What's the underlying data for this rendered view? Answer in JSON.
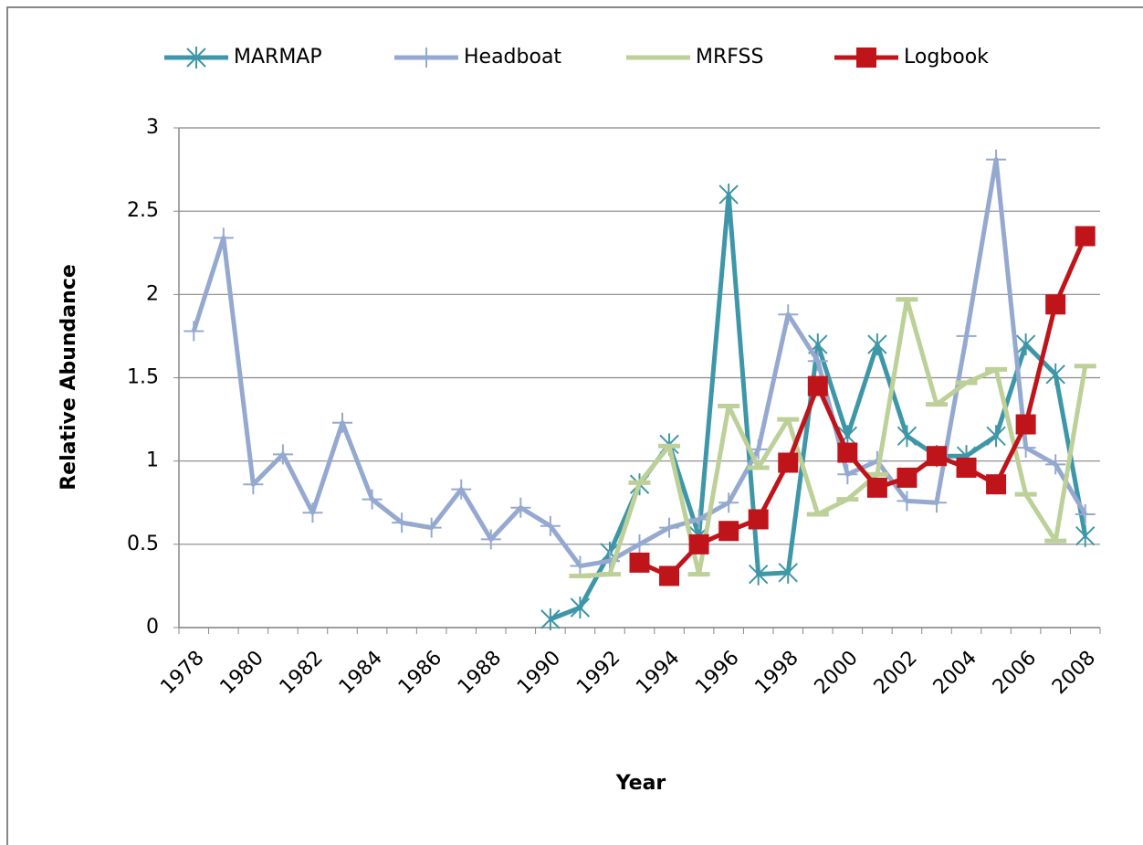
{
  "chart_data": {
    "type": "line",
    "xlabel": "Year",
    "ylabel": "Relative Abundance",
    "categories": [
      "1978",
      null,
      "1980",
      null,
      "1982",
      null,
      "1984",
      null,
      "1986",
      null,
      "1988",
      null,
      "1990",
      null,
      "1992",
      null,
      "1994",
      null,
      "1996",
      null,
      "1998",
      null,
      "2000",
      null,
      "2002",
      null,
      "2004",
      null,
      "2006",
      null,
      "2008"
    ],
    "series": [
      {
        "name": "MARMAP",
        "color": "#3e97a8",
        "marker": "star",
        "values": [
          null,
          null,
          null,
          null,
          null,
          null,
          null,
          null,
          null,
          null,
          null,
          null,
          0.05,
          0.12,
          0.45,
          0.86,
          1.1,
          0.55,
          2.6,
          0.32,
          0.33,
          1.7,
          1.15,
          1.7,
          1.15,
          1.03,
          1.03,
          1.15,
          1.7,
          1.52,
          0.55
        ]
      },
      {
        "name": "Headboat",
        "color": "#95a9d0",
        "marker": "plus",
        "values": [
          1.78,
          2.34,
          0.86,
          1.04,
          0.69,
          1.23,
          0.77,
          0.63,
          0.6,
          0.83,
          0.53,
          0.72,
          0.61,
          0.37,
          0.4,
          0.5,
          0.6,
          0.65,
          0.75,
          1.07,
          1.88,
          1.6,
          0.92,
          1.0,
          0.76,
          0.75,
          1.75,
          2.81,
          1.08,
          0.98,
          0.68
        ]
      },
      {
        "name": "MRFSS",
        "color": "#bcd098",
        "marker": "dash",
        "values": [
          null,
          null,
          null,
          null,
          null,
          null,
          null,
          null,
          null,
          null,
          null,
          null,
          null,
          0.31,
          0.32,
          0.87,
          1.09,
          0.32,
          1.33,
          0.96,
          1.25,
          0.68,
          0.77,
          0.92,
          1.97,
          1.34,
          1.47,
          1.55,
          0.8,
          0.52,
          1.57
        ]
      },
      {
        "name": "Logbook",
        "color": "#c0141b",
        "marker": "square",
        "values": [
          null,
          null,
          null,
          null,
          null,
          null,
          null,
          null,
          null,
          null,
          null,
          null,
          null,
          null,
          null,
          0.39,
          0.31,
          0.5,
          0.58,
          0.65,
          0.99,
          1.45,
          1.05,
          0.84,
          0.9,
          1.03,
          0.96,
          0.86,
          1.22,
          1.94,
          2.35
        ]
      }
    ],
    "ylim": [
      0,
      3
    ],
    "yticks": [
      0,
      0.5,
      1,
      1.5,
      2,
      2.5,
      3
    ],
    "grid": true
  }
}
